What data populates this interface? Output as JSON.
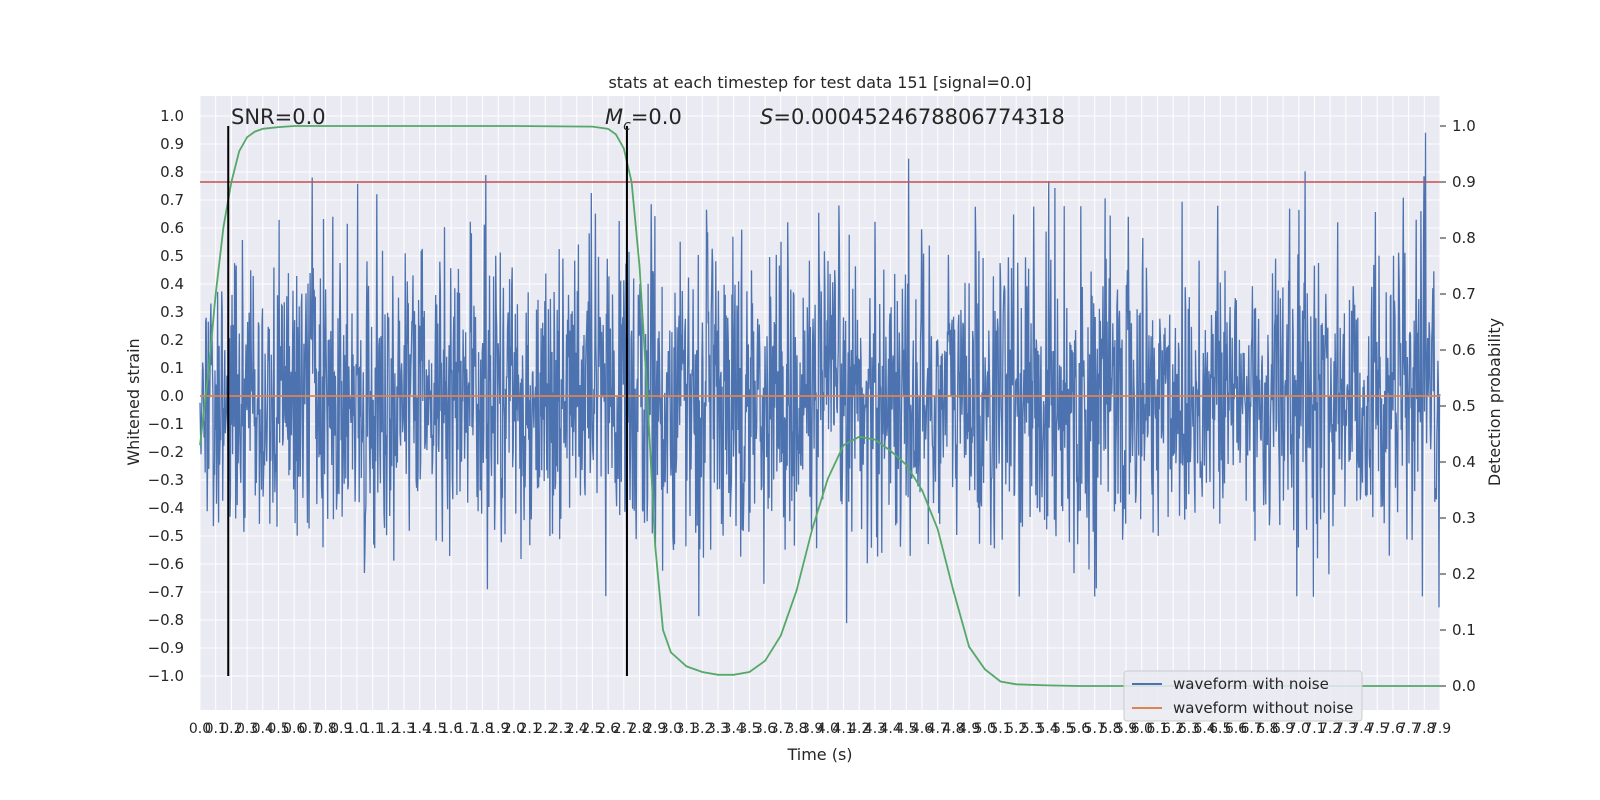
{
  "chart_data": {
    "type": "line",
    "title": "stats at each timestep for test data 151 [signal=0.0]",
    "xlabel": "Time (s)",
    "ylabel": "Whitened strain",
    "y2label": "Detection probability",
    "xlim": [
      0.0,
      7.9
    ],
    "ylim": [
      -1.1,
      1.05
    ],
    "y2lim": [
      -0.05,
      1.03
    ],
    "yticks": [
      -1.0,
      -0.9,
      -0.8,
      -0.7,
      -0.6,
      -0.5,
      -0.4,
      -0.3,
      -0.2,
      -0.1,
      0.0,
      0.1,
      0.2,
      0.3,
      0.4,
      0.5,
      0.6,
      0.7,
      0.8,
      0.9,
      1.0
    ],
    "ytick_labels": [
      "−1.0",
      "−0.9",
      "−0.8",
      "−0.7",
      "−0.6",
      "−0.5",
      "−0.4",
      "−0.3",
      "−0.2",
      "−0.1",
      "0.0",
      "0.1",
      "0.2",
      "0.3",
      "0.4",
      "0.5",
      "0.6",
      "0.7",
      "0.8",
      "0.9",
      "1.0"
    ],
    "y2ticks": [
      0.0,
      0.1,
      0.2,
      0.3,
      0.4,
      0.5,
      0.6,
      0.7,
      0.8,
      0.9,
      1.0
    ],
    "y2tick_labels": [
      "0.0",
      "0.1",
      "0.2",
      "0.3",
      "0.4",
      "0.5",
      "0.6",
      "0.7",
      "0.8",
      "0.9",
      "1.0"
    ],
    "xticks_step": 0.1,
    "grid": true,
    "legend_position": "bottom-right",
    "series": [
      {
        "name": "waveform with noise",
        "color": "#4c72b0",
        "kind": "noise",
        "amplitude_range": [
          -1.0,
          0.94
        ]
      },
      {
        "name": "waveform without noise",
        "color": "#dd8452",
        "kind": "constant",
        "value": 0.0
      },
      {
        "color": "#55a868",
        "axis": "right",
        "kind": "probability",
        "x": [
          0.0,
          0.05,
          0.1,
          0.15,
          0.2,
          0.25,
          0.3,
          0.35,
          0.4,
          0.5,
          0.6,
          1.0,
          2.0,
          2.5,
          2.6,
          2.65,
          2.7,
          2.75,
          2.8,
          2.85,
          2.9,
          2.95,
          3.0,
          3.1,
          3.2,
          3.3,
          3.4,
          3.5,
          3.6,
          3.7,
          3.8,
          3.9,
          4.0,
          4.1,
          4.2,
          4.3,
          4.4,
          4.5,
          4.6,
          4.7,
          4.8,
          4.9,
          5.0,
          5.1,
          5.2,
          5.4,
          5.6,
          6.0,
          7.0,
          7.9
        ],
        "y": [
          0.43,
          0.55,
          0.7,
          0.82,
          0.9,
          0.955,
          0.98,
          0.99,
          0.995,
          0.998,
          1.0,
          1.0,
          1.0,
          0.999,
          0.995,
          0.985,
          0.96,
          0.9,
          0.75,
          0.52,
          0.25,
          0.1,
          0.06,
          0.035,
          0.025,
          0.02,
          0.02,
          0.025,
          0.045,
          0.09,
          0.17,
          0.28,
          0.37,
          0.43,
          0.445,
          0.44,
          0.42,
          0.395,
          0.35,
          0.28,
          0.17,
          0.07,
          0.03,
          0.008,
          0.003,
          0.001,
          0.0,
          0.0,
          0.0,
          0.0
        ]
      },
      {
        "color": "#c44e52",
        "axis": "right",
        "kind": "threshold",
        "value": 0.9
      }
    ],
    "vertical_lines": [
      0.18,
      2.72
    ],
    "annotations": {
      "snr": "SNR=0.0",
      "mc_symbol": "M",
      "mc_sub": "c",
      "mc_value": "=0.0",
      "s_symbol": "S",
      "s_value": "=0.00045246788067743​18"
    }
  }
}
